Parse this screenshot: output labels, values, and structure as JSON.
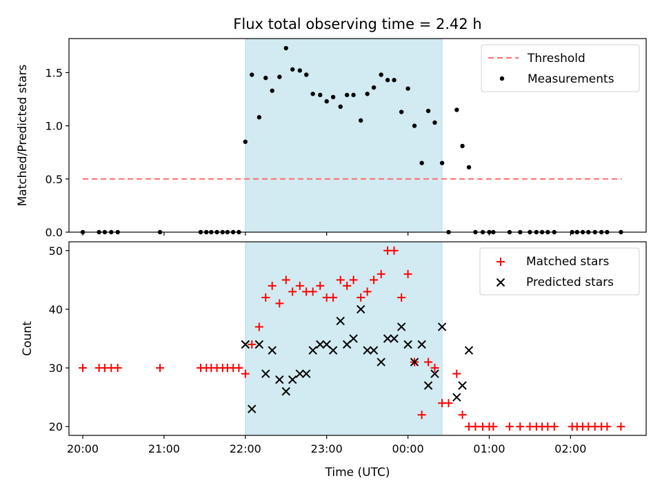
{
  "chart_data": [
    {
      "type": "scatter",
      "title": "Flux total observing time = 2.42 h",
      "xlabel": "",
      "ylabel": "Matched/Predicted stars",
      "xlim": [
        -0.17,
        6.93
      ],
      "ylim": [
        0,
        1.82
      ],
      "yticks": [
        0.0,
        0.5,
        1.0,
        1.5
      ],
      "ytick_labels": [
        "0.0",
        "0.5",
        "1.0",
        "1.5"
      ],
      "shaded_span": {
        "x0": 2.0,
        "x1": 4.42,
        "color": "#add8e6"
      },
      "threshold": {
        "name": "Threshold",
        "value": 0.5,
        "x0": 0.0,
        "x1": 6.63,
        "color": "#ff6b6b",
        "style": "dashed"
      },
      "legend": {
        "position": "top-right",
        "entries": [
          "Threshold",
          "Measurements"
        ]
      },
      "series": [
        {
          "name": "Measurements",
          "color": "#000000",
          "marker": "dot",
          "x": [
            0.0,
            0.2,
            0.27,
            0.35,
            0.43,
            0.95,
            1.45,
            1.52,
            1.58,
            1.65,
            1.72,
            1.78,
            1.85,
            1.92,
            2.0,
            2.08,
            2.17,
            2.25,
            2.33,
            2.42,
            2.5,
            2.58,
            2.67,
            2.75,
            2.83,
            2.92,
            3.0,
            3.08,
            3.17,
            3.25,
            3.33,
            3.42,
            3.5,
            3.58,
            3.67,
            3.75,
            3.83,
            3.92,
            4.0,
            4.08,
            4.17,
            4.25,
            4.33,
            4.42,
            4.5,
            4.6,
            4.67,
            4.75,
            4.83,
            4.92,
            5.0,
            5.05,
            5.25,
            5.38,
            5.5,
            5.58,
            5.65,
            5.72,
            5.8,
            6.02,
            6.08,
            6.15,
            6.22,
            6.3,
            6.38,
            6.45,
            6.62
          ],
          "y": [
            0,
            0,
            0,
            0,
            0,
            0,
            0,
            0,
            0,
            0,
            0,
            0,
            0,
            0,
            0.85,
            1.48,
            1.08,
            1.45,
            1.33,
            1.46,
            1.73,
            1.53,
            1.52,
            1.48,
            1.3,
            1.29,
            1.23,
            1.27,
            1.18,
            1.29,
            1.29,
            1.05,
            1.3,
            1.36,
            1.48,
            1.43,
            1.43,
            1.13,
            1.35,
            1.0,
            0.65,
            1.14,
            1.03,
            0.65,
            0,
            1.15,
            0.81,
            0.61,
            0,
            0,
            0,
            0,
            0,
            0,
            0,
            0,
            0,
            0,
            0,
            0,
            0,
            0,
            0,
            0,
            0,
            0,
            0
          ]
        }
      ]
    },
    {
      "type": "scatter",
      "title": "",
      "xlabel": "Time (UTC)",
      "ylabel": "Count",
      "xlim": [
        -0.17,
        6.93
      ],
      "ylim": [
        18.5,
        51.5
      ],
      "xticks": [
        0,
        1,
        2,
        3,
        4,
        5,
        6
      ],
      "xtick_labels": [
        "20:00",
        "21:00",
        "22:00",
        "23:00",
        "00:00",
        "01:00",
        "02:00"
      ],
      "yticks": [
        20,
        30,
        40,
        50
      ],
      "ytick_labels": [
        "20",
        "30",
        "40",
        "50"
      ],
      "shaded_span": {
        "x0": 2.0,
        "x1": 4.42,
        "color": "#add8e6"
      },
      "legend": {
        "position": "top-right",
        "entries": [
          "Matched stars",
          "Predicted stars"
        ]
      },
      "series": [
        {
          "name": "Matched stars",
          "color": "#ff0000",
          "marker": "plus",
          "x": [
            0.0,
            0.2,
            0.27,
            0.35,
            0.43,
            0.95,
            1.45,
            1.52,
            1.58,
            1.65,
            1.72,
            1.78,
            1.85,
            1.92,
            2.0,
            2.08,
            2.17,
            2.25,
            2.33,
            2.42,
            2.5,
            2.58,
            2.67,
            2.75,
            2.83,
            2.92,
            3.0,
            3.08,
            3.17,
            3.25,
            3.33,
            3.42,
            3.5,
            3.58,
            3.67,
            3.75,
            3.83,
            3.92,
            4.0,
            4.08,
            4.17,
            4.25,
            4.33,
            4.42,
            4.5,
            4.6,
            4.67,
            4.75,
            4.83,
            4.92,
            5.0,
            5.05,
            5.25,
            5.38,
            5.5,
            5.58,
            5.65,
            5.72,
            5.8,
            6.02,
            6.08,
            6.15,
            6.22,
            6.3,
            6.38,
            6.45,
            6.62
          ],
          "y": [
            30,
            30,
            30,
            30,
            30,
            30,
            30,
            30,
            30,
            30,
            30,
            30,
            30,
            30,
            29,
            34,
            37,
            42,
            44,
            41,
            45,
            43,
            44,
            43,
            43,
            44,
            42,
            42,
            45,
            44,
            45,
            42,
            43,
            45,
            46,
            50,
            50,
            42,
            46,
            31,
            22,
            31,
            30,
            24,
            24,
            29,
            22,
            20,
            20,
            20,
            20,
            20,
            20,
            20,
            20,
            20,
            20,
            20,
            20,
            20,
            20,
            20,
            20,
            20,
            20,
            20,
            20
          ]
        },
        {
          "name": "Predicted stars",
          "color": "#000000",
          "marker": "x",
          "x": [
            2.0,
            2.08,
            2.17,
            2.25,
            2.33,
            2.42,
            2.5,
            2.58,
            2.67,
            2.75,
            2.83,
            2.92,
            3.0,
            3.08,
            3.17,
            3.25,
            3.33,
            3.42,
            3.5,
            3.58,
            3.67,
            3.75,
            3.83,
            3.92,
            4.0,
            4.08,
            4.17,
            4.25,
            4.33,
            4.42,
            4.6,
            4.67,
            4.75
          ],
          "y": [
            34,
            23,
            34,
            29,
            33,
            28,
            26,
            28,
            29,
            29,
            33,
            34,
            34,
            33,
            38,
            34,
            35,
            40,
            33,
            33,
            31,
            35,
            35,
            37,
            34,
            31,
            34,
            27,
            29,
            37,
            25,
            27,
            33
          ]
        }
      ]
    }
  ]
}
